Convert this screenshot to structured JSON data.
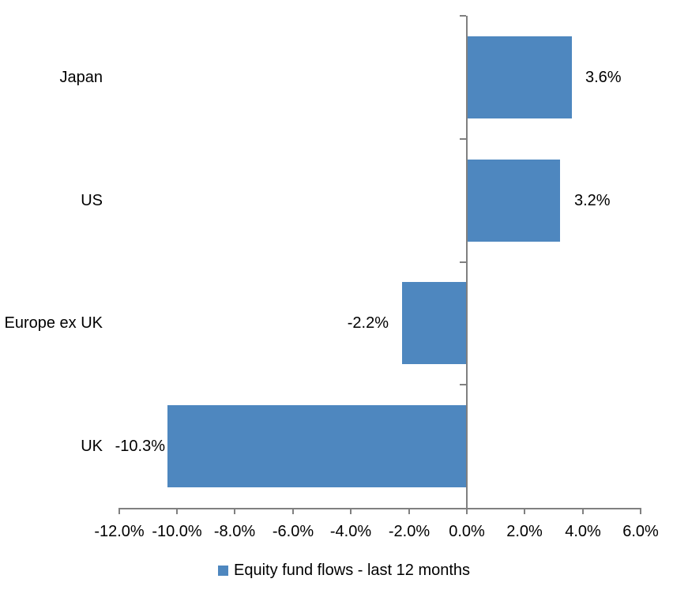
{
  "chart_data": {
    "type": "bar",
    "orientation": "horizontal",
    "title": "",
    "categories": [
      "Japan",
      "US",
      "Europe ex UK",
      "UK"
    ],
    "values": [
      3.6,
      3.2,
      -2.2,
      -10.3
    ],
    "data_labels": [
      "3.6%",
      "3.2%",
      "-2.2%",
      "-10.3%"
    ],
    "series": [
      {
        "name": "Equity fund flows - last 12 months",
        "values": [
          3.6,
          3.2,
          -2.2,
          -10.3
        ]
      }
    ],
    "xlabel": "",
    "ylabel": "",
    "xlim": [
      -12,
      6
    ],
    "x_ticks": [
      -12,
      -10,
      -8,
      -6,
      -4,
      -2,
      0,
      2,
      4,
      6
    ],
    "x_tick_labels": [
      "-12.0%",
      "-10.0%",
      "-8.0%",
      "-6.0%",
      "-4.0%",
      "-2.0%",
      "0.0%",
      "2.0%",
      "4.0%",
      "6.0%"
    ],
    "grid": false,
    "legend": {
      "position": "bottom",
      "label": "Equity fund flows - last 12 months"
    },
    "colors": {
      "bar": "#4E87BF",
      "axis": "#808080",
      "text": "#000000",
      "background": "#FFFFFF"
    }
  }
}
